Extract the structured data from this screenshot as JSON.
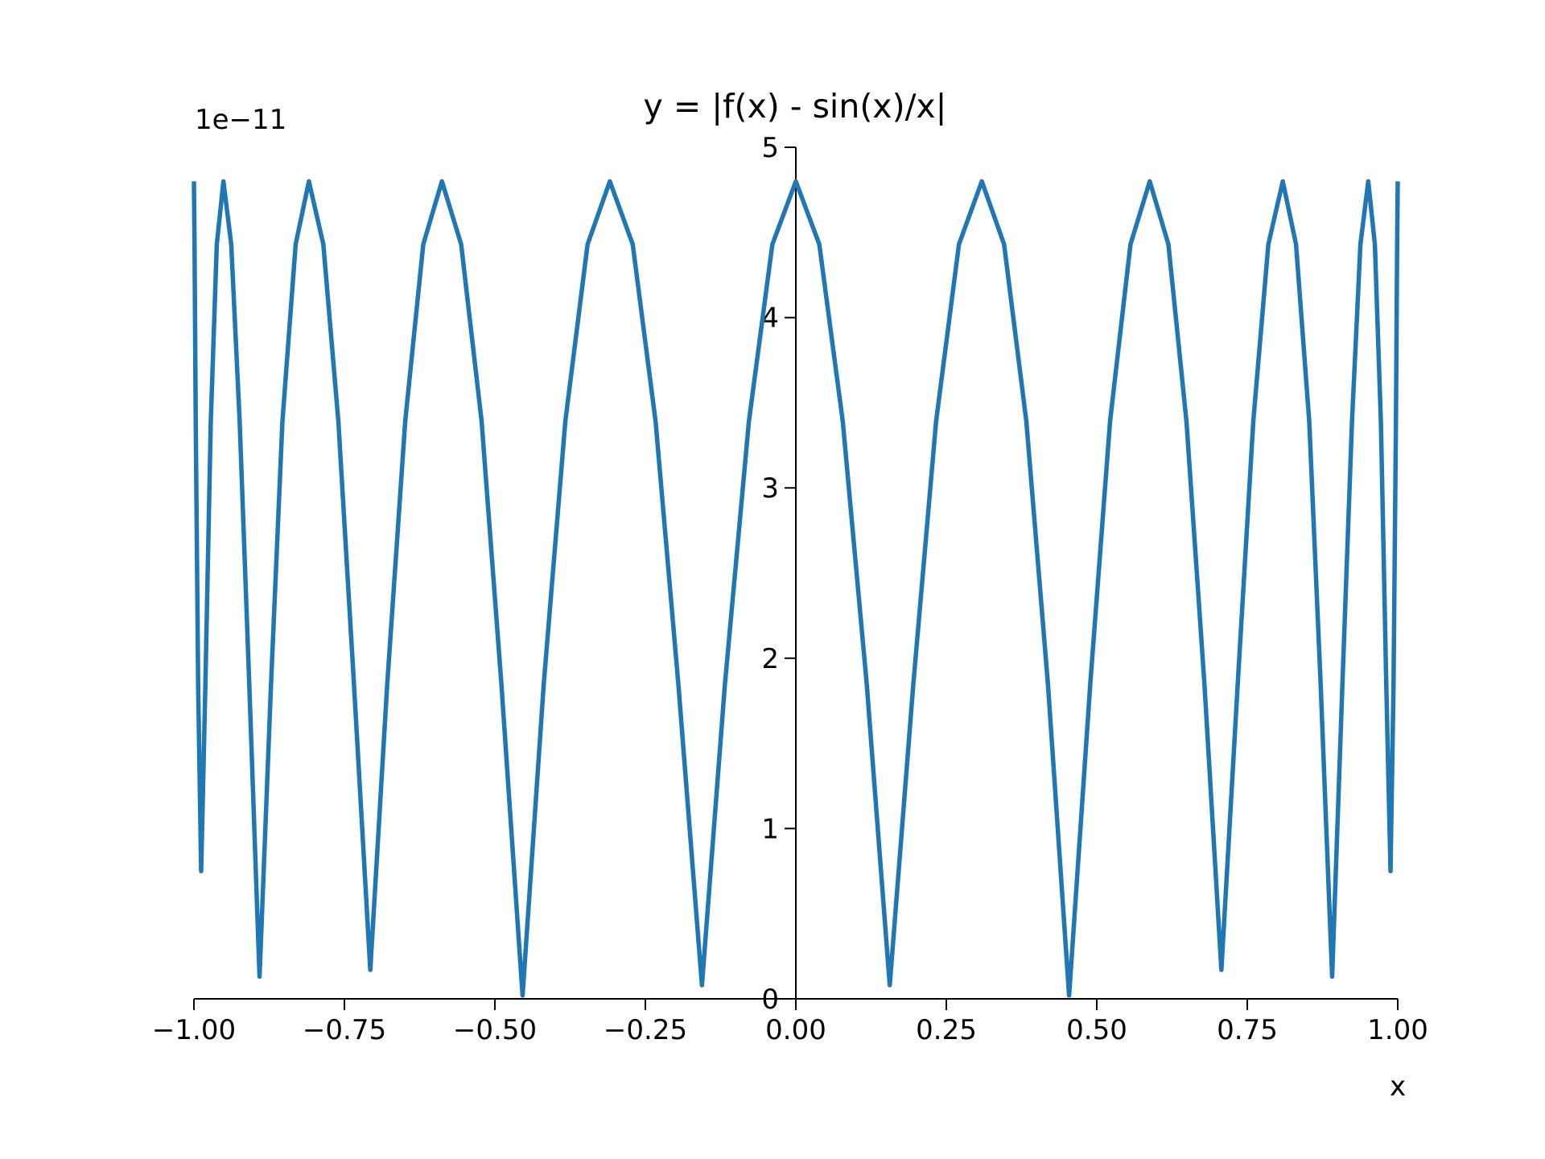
{
  "chart_data": {
    "type": "line",
    "title": "y = |f(x) - sin(x)/x|",
    "x_label": "x",
    "y_offset_label": "1e−11",
    "x": [
      -1.0,
      -0.999,
      -0.997,
      -0.993,
      -0.988,
      -0.981,
      -0.972,
      -0.962,
      -0.951,
      -0.938,
      -0.924,
      -0.908,
      -0.891,
      -0.872,
      -0.853,
      -0.831,
      -0.809,
      -0.785,
      -0.76,
      -0.734,
      -0.707,
      -0.679,
      -0.649,
      -0.619,
      -0.588,
      -0.556,
      -0.522,
      -0.489,
      -0.454,
      -0.419,
      -0.383,
      -0.346,
      -0.309,
      -0.271,
      -0.233,
      -0.195,
      -0.156,
      -0.118,
      -0.078,
      -0.039,
      0,
      0.039,
      0.078,
      0.118,
      0.156,
      0.195,
      0.233,
      0.271,
      0.309,
      0.346,
      0.383,
      0.419,
      0.454,
      0.489,
      0.522,
      0.556,
      0.588,
      0.619,
      0.649,
      0.679,
      0.707,
      0.734,
      0.76,
      0.785,
      0.809,
      0.831,
      0.853,
      0.872,
      0.891,
      0.908,
      0.924,
      0.938,
      0.951,
      0.962,
      0.972,
      0.981,
      0.988,
      0.993,
      0.997,
      0.999,
      1.0
    ],
    "series": [
      {
        "color": "#1f77b4",
        "values": [
          4.8,
          4.43,
          3.39,
          1.84,
          0.75,
          1.84,
          3.39,
          4.43,
          4.8,
          4.43,
          3.39,
          1.84,
          0.13,
          1.84,
          3.39,
          4.43,
          4.8,
          4.43,
          3.39,
          1.84,
          0.17,
          1.84,
          3.39,
          4.43,
          4.8,
          4.43,
          3.39,
          1.84,
          0.02,
          1.84,
          3.39,
          4.43,
          4.8,
          4.43,
          3.39,
          1.84,
          0.08,
          1.84,
          3.39,
          4.43,
          4.8,
          4.43,
          3.39,
          1.84,
          0.08,
          1.84,
          3.39,
          4.43,
          4.8,
          4.43,
          3.39,
          1.84,
          0.02,
          1.84,
          3.39,
          4.43,
          4.8,
          4.43,
          3.39,
          1.84,
          0.17,
          1.84,
          3.39,
          4.43,
          4.8,
          4.43,
          3.39,
          1.84,
          0.13,
          1.84,
          3.39,
          4.43,
          4.8,
          4.43,
          3.39,
          1.84,
          0.75,
          1.84,
          3.39,
          4.43,
          4.8
        ]
      }
    ],
    "xlim": [
      -1.0,
      1.0
    ],
    "ylim": [
      0,
      5
    ],
    "xticks": [
      {
        "value": -1.0,
        "label": "−1.00"
      },
      {
        "value": -0.75,
        "label": "−0.75"
      },
      {
        "value": -0.5,
        "label": "−0.50"
      },
      {
        "value": -0.25,
        "label": "−0.25"
      },
      {
        "value": 0,
        "label": "0.00"
      },
      {
        "value": 0.25,
        "label": "0.25"
      },
      {
        "value": 0.5,
        "label": "0.50"
      },
      {
        "value": 0.75,
        "label": "0.75"
      },
      {
        "value": 1.0,
        "label": "1.00"
      }
    ],
    "yticks": [
      0,
      1,
      2,
      3,
      4,
      5
    ],
    "grid": false
  }
}
